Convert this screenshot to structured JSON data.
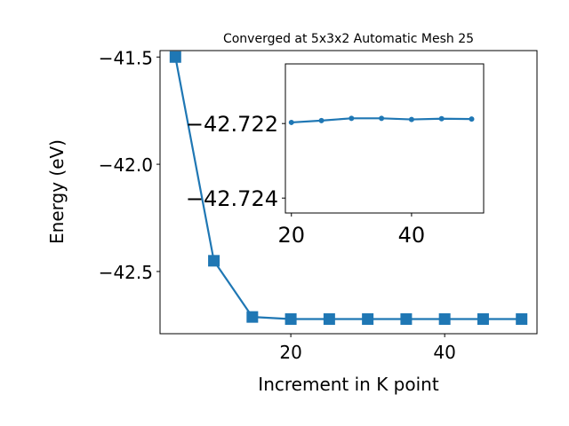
{
  "chart_data": [
    {
      "type": "line",
      "title": "Converged at 5x3x2 Automatic Mesh 25",
      "xlabel": "Increment in K point",
      "ylabel": "Energy (eV)",
      "xlim": [
        3,
        52
      ],
      "ylim": [
        -42.79,
        -41.47
      ],
      "xticks": [
        20,
        40
      ],
      "xtick_labels": [
        "20",
        "40"
      ],
      "yticks": [
        -41.5,
        -42.0,
        -42.5
      ],
      "ytick_labels": [
        "−41.5",
        "−42.0",
        "−42.5"
      ],
      "marker": "square",
      "grid": false,
      "series": [
        {
          "color": "#1f77b4",
          "x": [
            5,
            10,
            15,
            20,
            25,
            30,
            35,
            40,
            45,
            50
          ],
          "y": [
            -41.5,
            -42.45,
            -42.712,
            -42.7218,
            -42.7218,
            -42.7218,
            -42.7218,
            -42.7218,
            -42.7218,
            -42.7218
          ]
        }
      ]
    },
    {
      "type": "line",
      "title": "",
      "xlabel": "",
      "ylabel": "",
      "xlim": [
        19,
        52
      ],
      "ylim": [
        -42.7244,
        -42.7204
      ],
      "xticks": [
        20,
        40
      ],
      "xtick_labels": [
        "20",
        "40"
      ],
      "yticks": [
        -42.724,
        -42.722
      ],
      "ytick_labels": [
        "−42.724",
        "−42.722"
      ],
      "marker": "circle",
      "grid": false,
      "series": [
        {
          "color": "#1f77b4",
          "x": [
            20,
            25,
            30,
            35,
            40,
            45,
            50
          ],
          "y": [
            -42.72197,
            -42.72192,
            -42.72186,
            -42.72186,
            -42.72189,
            -42.72187,
            -42.72188
          ]
        }
      ]
    }
  ]
}
